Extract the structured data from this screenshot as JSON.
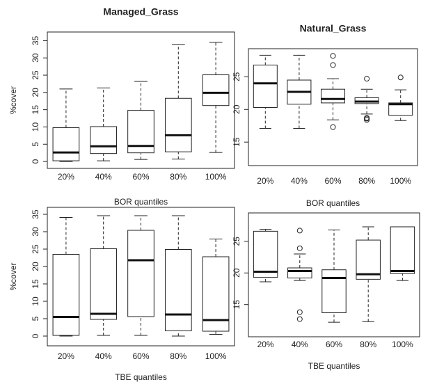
{
  "chart_data": [
    {
      "type": "box",
      "title": "Managed_Grass",
      "ylabel": "%cover",
      "xlabel": "BOR quantiles",
      "categories": [
        "20%",
        "40%",
        "60%",
        "80%",
        "100%"
      ],
      "ylim": [
        -2,
        37.5
      ],
      "yticks": [
        0,
        5,
        10,
        15,
        20,
        25,
        30,
        35
      ],
      "boxes": [
        {
          "whisker_low": 0,
          "q1": 0.2,
          "median": 2.6,
          "q3": 9.8,
          "whisker_high": 21
        },
        {
          "whisker_low": 0.2,
          "q1": 2.3,
          "median": 4.4,
          "q3": 10.1,
          "whisker_high": 21.3
        },
        {
          "whisker_low": 0.6,
          "q1": 2.5,
          "median": 4.5,
          "q3": 14.8,
          "whisker_high": 23.2
        },
        {
          "whisker_low": 0.7,
          "q1": 2.8,
          "median": 7.6,
          "q3": 18.3,
          "whisker_high": 33.9
        },
        {
          "whisker_low": 2.6,
          "q1": 16.2,
          "median": 19.9,
          "q3": 25.1,
          "whisker_high": 34.5
        }
      ]
    },
    {
      "type": "box",
      "title": "Natural_Grass",
      "xlabel": "BOR quantiles",
      "categories": [
        "20%",
        "40%",
        "60%",
        "80%",
        "100%"
      ],
      "ylim": [
        11.4,
        29.3
      ],
      "yticks": [
        15,
        20,
        25
      ],
      "boxes": [
        {
          "whisker_low": 17.1,
          "q1": 20.3,
          "median": 24,
          "q3": 26.8,
          "whisker_high": 28.3
        },
        {
          "whisker_low": 17.1,
          "q1": 20.8,
          "median": 22.7,
          "q3": 24.5,
          "whisker_high": 28.3
        },
        {
          "whisker_low": 18.4,
          "q1": 21,
          "median": 21.6,
          "q3": 23.1,
          "whisker_high": 24.7,
          "outliers": [
            28.2,
            26.8,
            17.3
          ]
        },
        {
          "whisker_low": 19.3,
          "q1": 20.9,
          "median": 21.2,
          "q3": 21.8,
          "whisker_high": 23.1,
          "outliers": [
            24.7,
            18.7,
            18.4,
            18.6
          ]
        },
        {
          "whisker_low": 18.3,
          "q1": 19.1,
          "median": 20.8,
          "q3": 21,
          "whisker_high": 23,
          "outliers": [
            24.9
          ]
        }
      ]
    },
    {
      "type": "box",
      "ylabel": "%cover",
      "xlabel": "TBE quantiles",
      "categories": [
        "20%",
        "40%",
        "60%",
        "80%",
        "100%"
      ],
      "ylim": [
        -2.8,
        37
      ],
      "yticks": [
        0,
        5,
        10,
        15,
        20,
        25,
        30,
        35
      ],
      "boxes": [
        {
          "whisker_low": 0,
          "q1": 0.2,
          "median": 5.5,
          "q3": 23.5,
          "whisker_high": 34.1
        },
        {
          "whisker_low": 0.2,
          "q1": 4.8,
          "median": 6.4,
          "q3": 25.1,
          "whisker_high": 34.6
        },
        {
          "whisker_low": 0.2,
          "q1": 5.6,
          "median": 21.8,
          "q3": 30.4,
          "whisker_high": 34.6
        },
        {
          "whisker_low": 0,
          "q1": 1.5,
          "median": 6.2,
          "q3": 24.9,
          "whisker_high": 34.6
        },
        {
          "whisker_low": 0.5,
          "q1": 1.4,
          "median": 4.6,
          "q3": 22.8,
          "whisker_high": 27.9
        }
      ]
    },
    {
      "type": "box",
      "xlabel": "TBE quantiles",
      "categories": [
        "20%",
        "40%",
        "60%",
        "80%",
        "100%"
      ],
      "ylim": [
        9.9,
        29.5
      ],
      "yticks": [
        15,
        20,
        25
      ],
      "boxes": [
        {
          "whisker_low": 18.6,
          "q1": 19.3,
          "median": 20.2,
          "q3": 26.6,
          "whisker_high": 26.9
        },
        {
          "whisker_low": 18.8,
          "q1": 19.2,
          "median": 20.3,
          "q3": 20.8,
          "whisker_high": 23,
          "outliers": [
            26.7,
            23.9,
            13.8,
            12.7
          ]
        },
        {
          "whisker_low": 12.2,
          "q1": 13.7,
          "median": 19.2,
          "q3": 20.5,
          "whisker_high": 26.8
        },
        {
          "whisker_low": 12.3,
          "q1": 19,
          "median": 19.8,
          "q3": 25.2,
          "whisker_high": 27.3
        },
        {
          "whisker_low": 18.8,
          "q1": 19.9,
          "median": 20.3,
          "q3": 27.3,
          "whisker_high": 27.3
        }
      ]
    }
  ]
}
